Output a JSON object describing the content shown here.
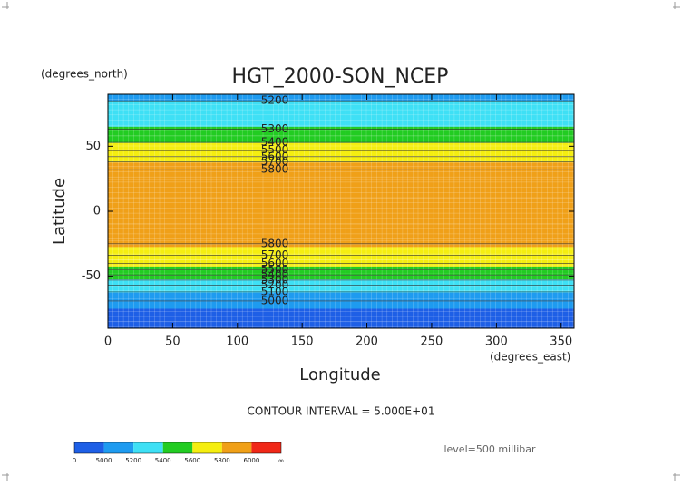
{
  "chart_data": {
    "type": "zonal-contour",
    "title": "HGT_2000-SON_NCEP",
    "y_unit": "(degrees_north)",
    "x_unit": "(degrees_east)",
    "y_label": "Latitude",
    "x_label": "Longitude",
    "xlim": [
      0,
      360
    ],
    "xticks": [
      0,
      50,
      100,
      150,
      200,
      250,
      300,
      350
    ],
    "ylim": [
      -90,
      90
    ],
    "yticks": [
      50,
      0,
      -50
    ],
    "latitudes": [
      90,
      80,
      70,
      60,
      55,
      50,
      45,
      40,
      35,
      30,
      20,
      0,
      -20,
      -25,
      -30,
      -35,
      -40,
      -45,
      -50,
      -55,
      -60,
      -65,
      -70,
      -80,
      -90
    ],
    "values": [
      5180,
      5250,
      5350,
      5450,
      5550,
      5620,
      5700,
      5780,
      5820,
      5860,
      5880,
      5880,
      5870,
      5830,
      5780,
      5700,
      5600,
      5500,
      5400,
      5300,
      5200,
      5100,
      5000,
      4980,
      4980
    ],
    "contour_labels": [
      {
        "level": 5200,
        "lat": 85
      },
      {
        "level": 5300,
        "lat": 63
      },
      {
        "level": 5400,
        "lat": 53
      },
      {
        "level": 5500,
        "lat": 47
      },
      {
        "level": 5600,
        "lat": 42
      },
      {
        "level": 5700,
        "lat": 38
      },
      {
        "level": 5800,
        "lat": 32
      },
      {
        "level": 5800,
        "lat": -25
      },
      {
        "level": 5700,
        "lat": -34
      },
      {
        "level": 5600,
        "lat": -40
      },
      {
        "level": 5500,
        "lat": -45
      },
      {
        "level": 5400,
        "lat": -49
      },
      {
        "level": 5300,
        "lat": -53
      },
      {
        "level": 5200,
        "lat": -57
      },
      {
        "level": 5100,
        "lat": -62
      },
      {
        "level": 5000,
        "lat": -69
      }
    ],
    "contour_interval": "CONTOUR INTERVAL = 5.000E+01",
    "level_text": "level=500 millibar",
    "colorbar": {
      "ticks": [
        0,
        5000,
        5200,
        5400,
        5600,
        5800,
        6000
      ],
      "end_label": "∞",
      "colors": [
        "#1e5fe6",
        "#1e9bf0",
        "#3ee0f5",
        "#22cc22",
        "#f5ee10",
        "#f0a018",
        "#f02818"
      ]
    }
  }
}
